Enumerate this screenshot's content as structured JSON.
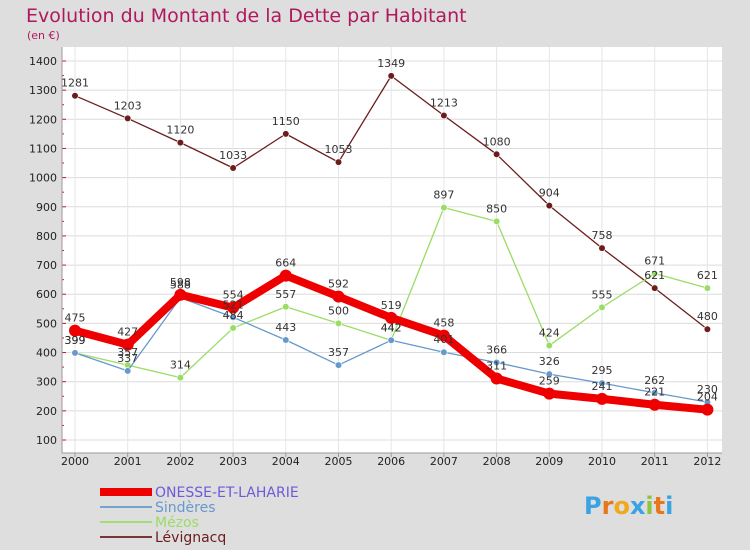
{
  "chart_data": {
    "type": "line",
    "title": "Evolution du Montant de la Dette par Habitant",
    "subtitle": "(en €)",
    "xlabel": "",
    "ylabel": "",
    "x": [
      "2000",
      "2001",
      "2002",
      "2003",
      "2004",
      "2005",
      "2006",
      "2007",
      "2008",
      "2009",
      "2010",
      "2011",
      "2012"
    ],
    "ylim": [
      100,
      1400
    ],
    "yticks": [
      100,
      200,
      300,
      400,
      500,
      600,
      700,
      800,
      900,
      1000,
      1100,
      1200,
      1300,
      1400
    ],
    "grid": true,
    "legend_position": "bottom-left",
    "series": [
      {
        "name": "Lévignacq",
        "color": "#6b1d1d",
        "values": [
          1281,
          1203,
          1120,
          1033,
          1150,
          1053,
          1349,
          1213,
          1080,
          904,
          758,
          621,
          480
        ]
      },
      {
        "name": "Mézos",
        "color": "#99dd66",
        "values": [
          399,
          357,
          314,
          484,
          557,
          500,
          442,
          897,
          850,
          424,
          555,
          671,
          621
        ]
      },
      {
        "name": "Sindères",
        "color": "#6699cc",
        "values": [
          399,
          337,
          588,
          521,
          443,
          357,
          442,
          401,
          366,
          326,
          295,
          262,
          230
        ]
      },
      {
        "name": "ONESSE-ET-LAHARIE",
        "color": "#ee0000",
        "values": [
          475,
          427,
          598,
          554,
          664,
          592,
          519,
          458,
          311,
          259,
          241,
          221,
          204
        ]
      }
    ],
    "legend_order": [
      "ONESSE-ET-LAHARIE",
      "Sindères",
      "Mézos",
      "Lévignacq"
    ]
  },
  "logo": {
    "text": "Proxiti",
    "letter_colors": [
      "#3aa3e3",
      "#e8771c",
      "#f0a81c",
      "#3aa3e3",
      "#8cc63f",
      "#e8771c",
      "#3aa3e3"
    ]
  },
  "colors": {
    "background": "#dedede",
    "plot_background": "#ffffff",
    "title": "#b0185e",
    "legend_highlight": "#6b5bd8"
  }
}
